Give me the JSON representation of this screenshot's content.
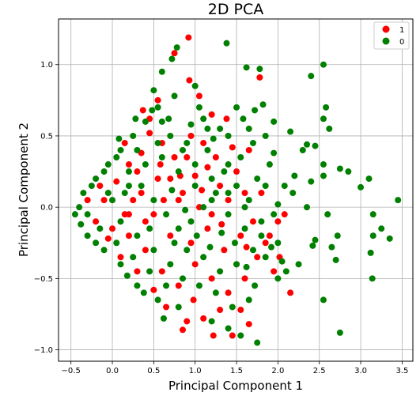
{
  "chart_data": {
    "type": "scatter",
    "title": "2D PCA",
    "xlabel": "Principal Component 1",
    "ylabel": "Principal Component 2",
    "xlim": [
      -0.65,
      3.63
    ],
    "ylim": [
      -1.08,
      1.32
    ],
    "xticks": [
      -0.5,
      0.0,
      0.5,
      1.0,
      1.5,
      2.0,
      2.5,
      3.0,
      3.5
    ],
    "xtick_labels": [
      "−0.5",
      "0.0",
      "0.5",
      "1.0",
      "1.5",
      "2.0",
      "2.5",
      "3.0",
      "3.5"
    ],
    "yticks": [
      -1.0,
      -0.5,
      0.0,
      0.5,
      1.0
    ],
    "ytick_labels": [
      "−1.0",
      "−0.5",
      "0.0",
      "0.5",
      "1.0"
    ],
    "grid": true,
    "legend_position": "top-right",
    "series": [
      {
        "name": "1",
        "color": "#ff0000",
        "points": [
          [
            0.92,
            1.19
          ],
          [
            0.75,
            1.08
          ],
          [
            0.93,
            0.89
          ],
          [
            1.78,
            0.91
          ],
          [
            1.05,
            0.78
          ],
          [
            0.55,
            0.75
          ],
          [
            1.2,
            0.65
          ],
          [
            0.37,
            0.68
          ],
          [
            1.38,
            0.62
          ],
          [
            0.6,
            0.45
          ],
          [
            0.45,
            0.52
          ],
          [
            0.9,
            0.35
          ],
          [
            1.15,
            0.28
          ],
          [
            0.7,
            0.2
          ],
          [
            0.2,
            0.3
          ],
          [
            0.35,
            0.1
          ],
          [
            0.05,
            0.18
          ],
          [
            -0.1,
            0.05
          ],
          [
            0.15,
            -0.05
          ],
          [
            0.4,
            -0.1
          ],
          [
            0.62,
            0.05
          ],
          [
            0.85,
            0.1
          ],
          [
            1.05,
            0.0
          ],
          [
            1.3,
            0.15
          ],
          [
            1.5,
            0.25
          ],
          [
            1.65,
            0.4
          ],
          [
            1.8,
            0.1
          ],
          [
            1.9,
            -0.2
          ],
          [
            2.0,
            -0.1
          ],
          [
            2.08,
            -0.05
          ],
          [
            2.15,
            -0.6
          ],
          [
            1.95,
            -0.45
          ],
          [
            1.75,
            -0.35
          ],
          [
            1.6,
            -0.5
          ],
          [
            1.4,
            -0.6
          ],
          [
            1.2,
            -0.5
          ],
          [
            1.0,
            -0.4
          ],
          [
            0.8,
            -0.55
          ],
          [
            0.6,
            -0.45
          ],
          [
            0.4,
            -0.3
          ],
          [
            0.2,
            -0.2
          ],
          [
            0.0,
            -0.15
          ],
          [
            -0.2,
            -0.1
          ],
          [
            0.9,
            -0.8
          ],
          [
            1.22,
            -0.9
          ],
          [
            1.1,
            -0.78
          ],
          [
            0.85,
            -0.86
          ],
          [
            1.45,
            -0.9
          ],
          [
            1.65,
            -0.82
          ],
          [
            1.55,
            -0.72
          ],
          [
            0.5,
            -0.58
          ],
          [
            0.3,
            -0.45
          ],
          [
            0.1,
            -0.35
          ],
          [
            -0.05,
            -0.22
          ],
          [
            0.25,
            0.05
          ],
          [
            0.55,
            0.2
          ],
          [
            0.75,
            0.35
          ],
          [
            0.95,
            0.5
          ],
          [
            1.1,
            0.45
          ],
          [
            1.25,
            0.35
          ],
          [
            1.45,
            0.42
          ],
          [
            1.6,
            0.1
          ],
          [
            1.7,
            -0.1
          ],
          [
            1.55,
            -0.2
          ],
          [
            1.35,
            -0.3
          ],
          [
            1.15,
            -0.15
          ],
          [
            0.95,
            -0.25
          ],
          [
            0.7,
            -0.2
          ],
          [
            0.5,
            -0.05
          ],
          [
            0.3,
            0.25
          ],
          [
            0.15,
            0.45
          ],
          [
            0.45,
            0.62
          ],
          [
            0.8,
            0.05
          ],
          [
            1.0,
            0.22
          ],
          [
            1.2,
            -0.05
          ],
          [
            1.4,
            0.05
          ],
          [
            1.62,
            -0.28
          ],
          [
            1.85,
            -0.25
          ],
          [
            2.02,
            -0.35
          ],
          [
            0.65,
            -0.7
          ],
          [
            0.98,
            -0.65
          ],
          [
            1.3,
            -0.72
          ],
          [
            1.5,
            -0.4
          ],
          [
            0.2,
            -0.05
          ],
          [
            -0.15,
            0.15
          ],
          [
            -0.3,
            0.05
          ],
          [
            0.35,
            0.38
          ],
          [
            0.58,
            0.3
          ],
          [
            0.82,
            0.22
          ],
          [
            1.08,
            0.12
          ],
          [
            1.32,
            -0.12
          ]
        ]
      },
      {
        "name": "0",
        "color": "#008000",
        "points": [
          [
            0.78,
            1.12
          ],
          [
            0.72,
            1.04
          ],
          [
            1.38,
            1.15
          ],
          [
            1.62,
            0.98
          ],
          [
            1.78,
            0.97
          ],
          [
            2.55,
            1.0
          ],
          [
            2.4,
            0.92
          ],
          [
            1.0,
            0.85
          ],
          [
            0.5,
            0.82
          ],
          [
            1.5,
            0.7
          ],
          [
            1.82,
            0.72
          ],
          [
            2.58,
            0.7
          ],
          [
            0.6,
            0.6
          ],
          [
            1.1,
            0.62
          ],
          [
            2.55,
            0.62
          ],
          [
            2.62,
            0.55
          ],
          [
            1.95,
            0.6
          ],
          [
            2.15,
            0.53
          ],
          [
            1.85,
            0.5
          ],
          [
            2.35,
            0.44
          ],
          [
            2.45,
            0.43
          ],
          [
            2.3,
            0.4
          ],
          [
            1.95,
            0.38
          ],
          [
            2.55,
            0.3
          ],
          [
            2.75,
            0.27
          ],
          [
            2.85,
            0.25
          ],
          [
            2.2,
            0.22
          ],
          [
            2.55,
            0.22
          ],
          [
            3.1,
            0.2
          ],
          [
            3.0,
            0.14
          ],
          [
            2.4,
            0.18
          ],
          [
            2.08,
            0.15
          ],
          [
            2.18,
            0.1
          ],
          [
            3.45,
            0.05
          ],
          [
            2.35,
            0.0
          ],
          [
            2.6,
            -0.05
          ],
          [
            2.0,
            0.02
          ],
          [
            3.15,
            -0.05
          ],
          [
            3.25,
            -0.15
          ],
          [
            3.35,
            -0.22
          ],
          [
            3.15,
            -0.2
          ],
          [
            2.72,
            -0.2
          ],
          [
            2.65,
            -0.28
          ],
          [
            2.45,
            -0.23
          ],
          [
            2.42,
            -0.27
          ],
          [
            2.7,
            -0.37
          ],
          [
            2.25,
            -0.4
          ],
          [
            2.0,
            -0.5
          ],
          [
            2.1,
            -0.45
          ],
          [
            3.12,
            -0.32
          ],
          [
            3.14,
            -0.5
          ],
          [
            2.55,
            -0.65
          ],
          [
            2.75,
            -0.88
          ],
          [
            1.75,
            -0.95
          ],
          [
            1.55,
            -0.9
          ],
          [
            1.4,
            -0.85
          ],
          [
            1.2,
            -0.8
          ],
          [
            0.8,
            -0.7
          ],
          [
            0.55,
            -0.65
          ],
          [
            0.3,
            -0.55
          ],
          [
            0.1,
            -0.4
          ],
          [
            -0.1,
            -0.3
          ],
          [
            -0.3,
            -0.2
          ],
          [
            -0.45,
            -0.05
          ],
          [
            -0.4,
            0.0
          ],
          [
            -0.35,
            0.1
          ],
          [
            -0.2,
            0.2
          ],
          [
            -0.05,
            0.3
          ],
          [
            0.1,
            0.4
          ],
          [
            0.25,
            0.5
          ],
          [
            0.4,
            0.6
          ],
          [
            0.55,
            0.7
          ],
          [
            0.7,
            0.5
          ],
          [
            0.85,
            0.4
          ],
          [
            1.0,
            0.3
          ],
          [
            1.2,
            0.2
          ],
          [
            1.4,
            0.1
          ],
          [
            1.6,
            0.0
          ],
          [
            1.8,
            -0.1
          ],
          [
            1.7,
            -0.3
          ],
          [
            1.5,
            -0.4
          ],
          [
            1.3,
            -0.45
          ],
          [
            1.1,
            -0.35
          ],
          [
            0.9,
            -0.3
          ],
          [
            0.7,
            -0.4
          ],
          [
            0.5,
            -0.3
          ],
          [
            0.3,
            -0.2
          ],
          [
            0.1,
            -0.1
          ],
          [
            0.0,
            0.05
          ],
          [
            0.2,
            0.15
          ],
          [
            0.4,
            0.3
          ],
          [
            0.6,
            0.35
          ],
          [
            0.8,
            0.25
          ],
          [
            1.0,
            0.15
          ],
          [
            1.2,
            0.05
          ],
          [
            1.4,
            -0.05
          ],
          [
            1.6,
            -0.15
          ],
          [
            1.75,
            0.2
          ],
          [
            1.9,
            0.3
          ],
          [
            1.65,
            0.55
          ],
          [
            1.4,
            0.5
          ],
          [
            1.15,
            0.4
          ],
          [
            0.95,
            0.58
          ],
          [
            0.75,
            0.78
          ],
          [
            0.6,
            0.95
          ],
          [
            1.05,
            0.7
          ],
          [
            1.3,
            0.55
          ],
          [
            1.55,
            0.35
          ],
          [
            1.7,
            0.45
          ],
          [
            1.85,
            0.15
          ],
          [
            1.95,
            -0.05
          ],
          [
            1.85,
            -0.35
          ],
          [
            1.65,
            -0.65
          ],
          [
            1.45,
            -0.7
          ],
          [
            1.25,
            -0.6
          ],
          [
            1.05,
            -0.55
          ],
          [
            0.85,
            -0.5
          ],
          [
            0.65,
            -0.55
          ],
          [
            0.45,
            -0.45
          ],
          [
            0.25,
            -0.35
          ],
          [
            0.05,
            -0.25
          ],
          [
            -0.15,
            -0.15
          ],
          [
            -0.3,
            -0.05
          ],
          [
            -0.25,
            0.15
          ],
          [
            -0.1,
            0.25
          ],
          [
            0.05,
            0.35
          ],
          [
            0.2,
            0.25
          ],
          [
            0.35,
            0.15
          ],
          [
            0.5,
            0.05
          ],
          [
            0.65,
            -0.05
          ],
          [
            0.8,
            -0.15
          ],
          [
            0.95,
            -0.1
          ],
          [
            1.1,
            0.0
          ],
          [
            1.25,
            0.1
          ],
          [
            1.35,
            0.25
          ],
          [
            1.5,
            0.15
          ],
          [
            1.65,
            0.05
          ],
          [
            1.8,
            -0.2
          ],
          [
            2.0,
            -0.25
          ],
          [
            0.3,
            0.4
          ],
          [
            0.15,
            0.1
          ],
          [
            -0.05,
            0.1
          ],
          [
            0.45,
            -0.15
          ],
          [
            0.75,
            -0.25
          ],
          [
            0.55,
            0.45
          ],
          [
            0.9,
            0.45
          ],
          [
            1.15,
            0.55
          ],
          [
            1.4,
            0.3
          ],
          [
            0.72,
            0.12
          ],
          [
            0.88,
            -0.02
          ],
          [
            1.02,
            -0.2
          ],
          [
            1.18,
            -0.28
          ],
          [
            1.32,
            -0.18
          ],
          [
            1.48,
            -0.25
          ],
          [
            1.62,
            -0.42
          ],
          [
            1.72,
            -0.55
          ],
          [
            1.92,
            -0.28
          ],
          [
            2.05,
            -0.38
          ],
          [
            0.38,
            -0.6
          ],
          [
            0.62,
            -0.78
          ],
          [
            0.18,
            -0.48
          ],
          [
            -0.2,
            -0.25
          ],
          [
            -0.38,
            -0.12
          ],
          [
            0.08,
            0.48
          ],
          [
            0.28,
            0.62
          ],
          [
            0.48,
            0.68
          ],
          [
            0.68,
            0.62
          ],
          [
            1.22,
            0.48
          ],
          [
            1.58,
            0.62
          ],
          [
            1.72,
            0.68
          ]
        ]
      }
    ]
  }
}
